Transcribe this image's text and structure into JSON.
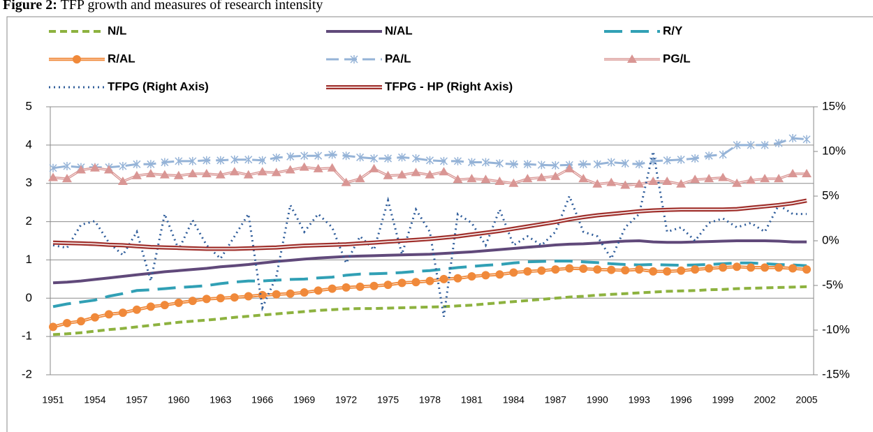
{
  "chart_data": {
    "type": "line",
    "figure_label": "Figure 2:",
    "title": "TFP growth and measures of research intensity",
    "categories": [
      "1951",
      null,
      null,
      "1954",
      null,
      null,
      "1957",
      null,
      null,
      "1960",
      null,
      null,
      "1963",
      null,
      null,
      "1966",
      null,
      null,
      "1969",
      null,
      null,
      "1972",
      null,
      null,
      "1975",
      null,
      null,
      "1978",
      null,
      null,
      "1981",
      null,
      null,
      "1984",
      null,
      null,
      "1987",
      null,
      null,
      "1990",
      null,
      null,
      "1993",
      null,
      null,
      "1996",
      null,
      null,
      "1999",
      null,
      null,
      "2002",
      null,
      null,
      "2005"
    ],
    "ylim": [
      -2,
      5
    ],
    "yticks": [
      -2,
      -1,
      0,
      1,
      2,
      3,
      4,
      5
    ],
    "y2lim": [
      -15,
      15
    ],
    "y2ticks": [
      {
        "value": -15,
        "label": "-15%"
      },
      {
        "value": -10,
        "label": "-10%"
      },
      {
        "value": -5,
        "label": "-5%"
      },
      {
        "value": 0,
        "label": "0%"
      },
      {
        "value": 5,
        "label": "5%"
      },
      {
        "value": 10,
        "label": "10%"
      },
      {
        "value": 15,
        "label": "15%"
      }
    ],
    "grid": true,
    "legend": "top",
    "series": [
      {
        "name": "N/L",
        "color": "#8db23f",
        "values": [
          -0.95,
          -0.93,
          -0.9,
          -0.86,
          -0.82,
          -0.79,
          -0.75,
          -0.71,
          -0.67,
          -0.63,
          -0.6,
          -0.57,
          -0.54,
          -0.5,
          -0.47,
          -0.44,
          -0.41,
          -0.38,
          -0.35,
          -0.32,
          -0.3,
          -0.28,
          -0.27,
          -0.27,
          -0.26,
          -0.25,
          -0.24,
          -0.23,
          -0.22,
          -0.2,
          -0.18,
          -0.15,
          -0.12,
          -0.09,
          -0.06,
          -0.03,
          0,
          0.03,
          0.05,
          0.08,
          0.1,
          0.12,
          0.14,
          0.16,
          0.18,
          0.19,
          0.2,
          0.22,
          0.23,
          0.25,
          0.26,
          0.27,
          0.28,
          0.29,
          0.3
        ]
      },
      {
        "name": "N/AL",
        "color": "#60497a",
        "values": [
          0.4,
          0.42,
          0.45,
          0.49,
          0.53,
          0.57,
          0.61,
          0.65,
          0.69,
          0.72,
          0.75,
          0.78,
          0.82,
          0.85,
          0.88,
          0.92,
          0.96,
          0.99,
          1.02,
          1.05,
          1.07,
          1.09,
          1.1,
          1.11,
          1.12,
          1.13,
          1.14,
          1.15,
          1.17,
          1.19,
          1.21,
          1.24,
          1.27,
          1.3,
          1.33,
          1.36,
          1.39,
          1.41,
          1.42,
          1.44,
          1.47,
          1.49,
          1.5,
          1.47,
          1.46,
          1.46,
          1.47,
          1.48,
          1.49,
          1.5,
          1.5,
          1.5,
          1.49,
          1.47,
          1.47
        ]
      },
      {
        "name": "R/Y",
        "color": "#31a0b5",
        "values": [
          -0.22,
          -0.15,
          -0.1,
          -0.05,
          0.05,
          0.12,
          0.2,
          0.22,
          0.25,
          0.28,
          0.3,
          0.33,
          0.38,
          0.42,
          0.45,
          0.45,
          0.47,
          0.49,
          0.5,
          0.53,
          0.55,
          0.6,
          0.63,
          0.64,
          0.65,
          0.67,
          0.7,
          0.72,
          0.76,
          0.8,
          0.83,
          0.86,
          0.88,
          0.92,
          0.95,
          0.96,
          0.97,
          0.97,
          0.95,
          0.93,
          0.9,
          0.88,
          0.87,
          0.88,
          0.87,
          0.86,
          0.87,
          0.88,
          0.9,
          0.92,
          0.92,
          0.9,
          0.88,
          0.87,
          0.85
        ]
      },
      {
        "name": "R/AL",
        "color": "#f0893a",
        "values": [
          -0.75,
          -0.65,
          -0.6,
          -0.5,
          -0.42,
          -0.38,
          -0.3,
          -0.22,
          -0.18,
          -0.12,
          -0.07,
          -0.02,
          0,
          0.02,
          0.05,
          0.08,
          0.1,
          0.12,
          0.15,
          0.2,
          0.25,
          0.28,
          0.3,
          0.32,
          0.35,
          0.4,
          0.42,
          0.45,
          0.5,
          0.52,
          0.57,
          0.6,
          0.62,
          0.67,
          0.7,
          0.72,
          0.75,
          0.78,
          0.77,
          0.75,
          0.74,
          0.73,
          0.75,
          0.7,
          0.7,
          0.72,
          0.75,
          0.78,
          0.8,
          0.82,
          0.8,
          0.8,
          0.8,
          0.78,
          0.75
        ]
      },
      {
        "name": "PA/L",
        "color": "#95b3d7",
        "values": [
          3.4,
          3.45,
          3.42,
          3.42,
          3.42,
          3.45,
          3.5,
          3.5,
          3.55,
          3.58,
          3.58,
          3.6,
          3.6,
          3.62,
          3.62,
          3.6,
          3.67,
          3.7,
          3.72,
          3.72,
          3.75,
          3.72,
          3.68,
          3.65,
          3.65,
          3.68,
          3.65,
          3.6,
          3.58,
          3.58,
          3.55,
          3.55,
          3.52,
          3.5,
          3.5,
          3.48,
          3.47,
          3.48,
          3.5,
          3.5,
          3.55,
          3.52,
          3.5,
          3.58,
          3.6,
          3.62,
          3.65,
          3.72,
          3.75,
          4.0,
          4.0,
          4.0,
          4.05,
          4.18,
          4.15
        ]
      },
      {
        "name": "PG/L",
        "color": "#d99694",
        "values": [
          3.15,
          3.12,
          3.35,
          3.4,
          3.35,
          3.05,
          3.2,
          3.25,
          3.22,
          3.2,
          3.25,
          3.25,
          3.22,
          3.3,
          3.22,
          3.3,
          3.28,
          3.35,
          3.42,
          3.38,
          3.4,
          3.02,
          3.12,
          3.38,
          3.2,
          3.22,
          3.28,
          3.22,
          3.3,
          3.1,
          3.12,
          3.1,
          3.05,
          3.0,
          3.12,
          3.15,
          3.18,
          3.38,
          3.12,
          2.98,
          3.02,
          2.95,
          2.98,
          3.05,
          3.05,
          2.98,
          3.1,
          3.12,
          3.15,
          3.0,
          3.08,
          3.12,
          3.12,
          3.25,
          3.25
        ]
      },
      {
        "name": "TFPG (Right Axis)",
        "color": "#2e5c9a",
        "axis": "y2",
        "values": [
          -0.5,
          -0.8,
          1.8,
          2.2,
          -0.2,
          -1.6,
          1.0,
          -4.5,
          3.0,
          -1.0,
          2.3,
          -0.5,
          -2.0,
          0.5,
          3.0,
          -7.5,
          -4.0,
          4.0,
          1.0,
          3.0,
          1.5,
          -2.5,
          0.5,
          -1.0,
          4.5,
          -1.5,
          3.5,
          1.0,
          -8.5,
          3.0,
          2.0,
          -0.5,
          3.5,
          -0.5,
          0.5,
          -0.5,
          1.0,
          5.0,
          1.0,
          0.5,
          -2.0,
          1.5,
          3.0,
          10.0,
          1.0,
          1.5,
          0.0,
          2.0,
          2.5,
          1.5,
          2.0,
          1.0,
          4.0,
          3.0,
          3.0
        ]
      },
      {
        "name": "TFPG - HP (Right Axis)",
        "color": "#a0302c",
        "axis": "y2",
        "values": [
          -0.2,
          -0.25,
          -0.3,
          -0.35,
          -0.45,
          -0.5,
          -0.6,
          -0.7,
          -0.75,
          -0.8,
          -0.85,
          -0.9,
          -0.9,
          -0.9,
          -0.85,
          -0.8,
          -0.75,
          -0.65,
          -0.55,
          -0.5,
          -0.45,
          -0.4,
          -0.3,
          -0.2,
          -0.1,
          0,
          0.1,
          0.2,
          0.35,
          0.5,
          0.7,
          0.9,
          1.1,
          1.35,
          1.6,
          1.85,
          2.1,
          2.4,
          2.65,
          2.85,
          3.0,
          3.15,
          3.3,
          3.4,
          3.45,
          3.5,
          3.5,
          3.5,
          3.5,
          3.55,
          3.7,
          3.85,
          4.0,
          4.2,
          4.5
        ]
      }
    ]
  }
}
